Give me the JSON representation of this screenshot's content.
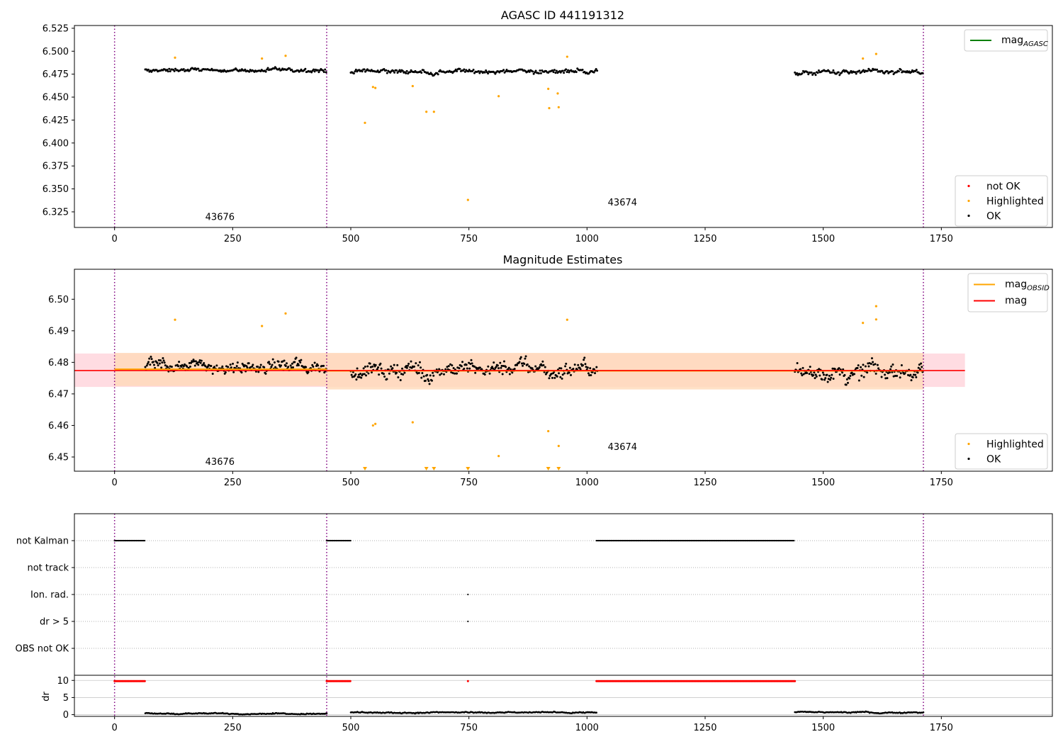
{
  "figure": {
    "background": "#ffffff"
  },
  "colors": {
    "ok": "#000000",
    "highlighted": "#ffa500",
    "not_ok": "#ff0000",
    "mag_agasc": "#008000",
    "mag_obsid": "#ffa500",
    "mag": "#ff0000",
    "obsid_line": "#800080",
    "band_mag": "#ffc0cb",
    "band_obsid": "#ffdab9"
  },
  "chart_data": [
    {
      "type": "scatter",
      "title": "AGASC ID 441191312",
      "xlim": [
        -85,
        1985
      ],
      "ylim": [
        6.308,
        6.528
      ],
      "xticks": [
        0,
        250,
        500,
        750,
        1000,
        1250,
        1500,
        1750
      ],
      "yticks": [
        6.325,
        6.35,
        6.375,
        6.4,
        6.425,
        6.45,
        6.475,
        6.5,
        6.525
      ],
      "ytick_labels": [
        "6.325",
        "6.350",
        "6.375",
        "6.400",
        "6.425",
        "6.450",
        "6.475",
        "6.500",
        "6.525"
      ],
      "obsid_lines": [
        0,
        449,
        1712
      ],
      "obsid_labels": [
        {
          "x": 192,
          "y": 6.316,
          "text": "43676"
        },
        {
          "x": 1044,
          "y": 6.332,
          "text": "43674"
        }
      ],
      "series": [
        {
          "name": "OK",
          "segments": [
            {
              "x0": 65,
              "x1": 449,
              "center": 6.479,
              "spread": 0.0045
            },
            {
              "x0": 500,
              "x1": 1022,
              "center": 6.478,
              "spread": 0.0055
            },
            {
              "x0": 1440,
              "x1": 1712,
              "center": 6.477,
              "spread": 0.0055
            }
          ]
        },
        {
          "name": "Highlighted",
          "x": [
            128,
            312,
            362,
            530,
            547,
            552,
            631,
            660,
            676,
            748,
            813,
            918,
            920,
            938,
            940,
            958,
            1584,
            1612
          ],
          "y": [
            6.493,
            6.492,
            6.495,
            6.422,
            6.461,
            6.46,
            6.462,
            6.434,
            6.434,
            6.338,
            6.451,
            6.459,
            6.438,
            6.454,
            6.439,
            6.494,
            6.492,
            6.497
          ]
        },
        {
          "name": "not OK",
          "x": [],
          "y": []
        }
      ],
      "legend_upper": [
        {
          "label_main": "mag",
          "label_sub": "AGASC",
          "style": "line",
          "color": "#008000"
        }
      ],
      "legend_lower": [
        {
          "label": "not OK",
          "style": "marker",
          "color": "#ff0000"
        },
        {
          "label": "Highlighted",
          "style": "marker",
          "color": "#ffa500"
        },
        {
          "label": "OK",
          "style": "marker",
          "color": "#000000"
        }
      ],
      "legend_upper_placement": "top-right",
      "legend_lower_placement": "bottom-right"
    },
    {
      "type": "scatter",
      "title": "Magnitude Estimates",
      "xlim": [
        -85,
        1985
      ],
      "ylim": [
        6.4455,
        6.5095
      ],
      "xticks": [
        0,
        250,
        500,
        750,
        1000,
        1250,
        1500,
        1750
      ],
      "yticks": [
        6.45,
        6.46,
        6.47,
        6.48,
        6.49,
        6.5
      ],
      "ytick_labels": [
        "6.45",
        "6.46",
        "6.47",
        "6.48",
        "6.49",
        "6.50"
      ],
      "obsid_lines": [
        0,
        449,
        1712
      ],
      "obsid_labels": [
        {
          "x": 192,
          "y": 6.4475,
          "text": "43676"
        },
        {
          "x": 1044,
          "y": 6.4522,
          "text": "43674"
        }
      ],
      "mag_line": {
        "x0": -85,
        "x1": 1800,
        "y": 6.4774,
        "band": [
          6.4722,
          6.4828
        ]
      },
      "mag_obsid": [
        {
          "x0": 0,
          "x1": 449,
          "y": 6.4778,
          "band": [
            6.4725,
            6.483
          ]
        },
        {
          "x0": 449,
          "x1": 1712,
          "y": 6.4773,
          "band": [
            6.4714,
            6.483
          ]
        }
      ],
      "series": [
        {
          "name": "OK",
          "segments": [
            {
              "x0": 65,
              "x1": 449,
              "center": 6.4785,
              "spread": 0.0045
            },
            {
              "x0": 500,
              "x1": 1022,
              "center": 6.4775,
              "spread": 0.0055
            },
            {
              "x0": 1440,
              "x1": 1712,
              "center": 6.477,
              "spread": 0.0055
            }
          ]
        },
        {
          "name": "Highlighted",
          "x": [
            128,
            312,
            362,
            547,
            552,
            631,
            813,
            918,
            940,
            958,
            1584,
            1612,
            1612
          ],
          "y": [
            6.4935,
            6.4915,
            6.4955,
            6.46,
            6.4605,
            6.461,
            6.4503,
            6.4582,
            6.4535,
            6.4935,
            6.4925,
            6.4978,
            6.4936
          ]
        },
        {
          "name": "Highlighted (below axis)",
          "x": [
            530,
            660,
            676,
            748,
            918,
            940
          ],
          "y": [
            6.4463,
            6.4463,
            6.4463,
            6.4463,
            6.4463,
            6.4463
          ]
        }
      ],
      "legend_upper": [
        {
          "label_main": "mag",
          "label_sub": "OBSID",
          "style": "line",
          "color": "#ffa500"
        },
        {
          "label_main": "mag",
          "label_sub": "",
          "style": "line",
          "color": "#ff0000"
        }
      ],
      "legend_lower": [
        {
          "label": "Highlighted",
          "style": "marker",
          "color": "#ffa500"
        },
        {
          "label": "OK",
          "style": "marker",
          "color": "#000000"
        }
      ],
      "legend_upper_placement": "top-right",
      "legend_lower_placement": "bottom-right"
    },
    {
      "type": "scatter",
      "title": "",
      "xlim": [
        -85,
        1985
      ],
      "xticks": [
        0,
        250,
        500,
        750,
        1000,
        1250,
        1500,
        1750
      ],
      "obsid_lines": [
        0,
        449,
        1712
      ],
      "flag_rows": [
        {
          "label": "not Kalman",
          "ranges": [
            [
              0,
              65
            ],
            [
              449,
              500
            ],
            [
              1020,
              1440
            ]
          ],
          "points": []
        },
        {
          "label": "not track",
          "ranges": [],
          "points": []
        },
        {
          "label": "Ion. rad.",
          "ranges": [],
          "points": [
            748
          ]
        },
        {
          "label": "dr > 5",
          "ranges": [],
          "points": [
            748
          ]
        },
        {
          "label": "OBS not OK",
          "ranges": [],
          "points": []
        }
      ],
      "dr_panel": {
        "ylabel": "dr",
        "ylim": [
          -0.5,
          11.5
        ],
        "yticks": [
          0,
          5,
          10
        ],
        "ytick_labels": [
          "0",
          "5",
          "10"
        ],
        "flagged": {
          "ranges": [
            [
              0,
              65
            ],
            [
              449,
              500
            ],
            [
              1020,
              1440
            ]
          ],
          "points": [
            748
          ],
          "y": 9.8
        },
        "series": [
          {
            "x0": 65,
            "x1": 449,
            "center": 0.35,
            "spread": 0.3
          },
          {
            "x0": 500,
            "x1": 1020,
            "center": 0.6,
            "spread": 0.35
          },
          {
            "x0": 1440,
            "x1": 1712,
            "center": 0.7,
            "spread": 0.35
          }
        ]
      }
    }
  ]
}
